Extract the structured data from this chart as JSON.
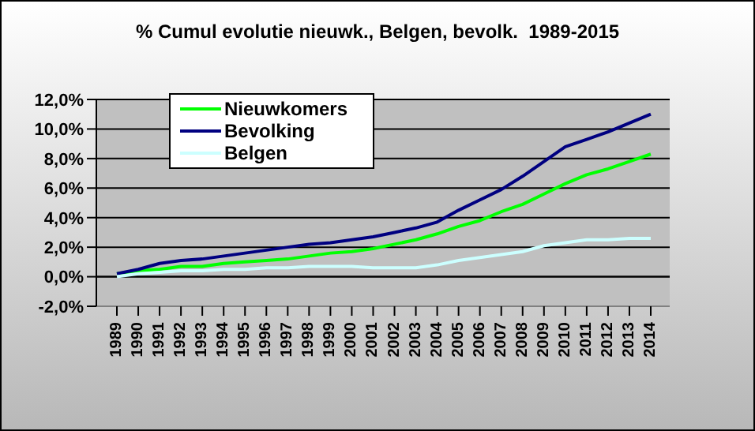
{
  "chart_data": {
    "type": "line",
    "title": "% Cumul evolutie nieuwk., Belgen, bevolk.  1989-2015",
    "categories": [
      "1989",
      "1990",
      "1991",
      "1992",
      "1993",
      "1994",
      "1995",
      "1996",
      "1997",
      "1998",
      "1999",
      "2000",
      "2001",
      "2002",
      "2003",
      "2004",
      "2005",
      "2006",
      "2007",
      "2008",
      "2009",
      "2010",
      "2011",
      "2012",
      "2013",
      "2014"
    ],
    "series": [
      {
        "name": "Nieuwkomers",
        "color": "#00ff00",
        "values": [
          0.2,
          0.4,
          0.5,
          0.7,
          0.7,
          0.9,
          1.0,
          1.1,
          1.2,
          1.4,
          1.6,
          1.7,
          1.9,
          2.2,
          2.5,
          2.9,
          3.4,
          3.8,
          4.4,
          4.9,
          5.6,
          6.3,
          6.9,
          7.3,
          7.8,
          8.3
        ]
      },
      {
        "name": "Bevolking",
        "color": "#000080",
        "values": [
          0.2,
          0.5,
          0.9,
          1.1,
          1.2,
          1.4,
          1.6,
          1.8,
          2.0,
          2.2,
          2.3,
          2.5,
          2.7,
          3.0,
          3.3,
          3.7,
          4.5,
          5.2,
          5.9,
          6.8,
          7.8,
          8.8,
          9.3,
          9.8,
          10.4,
          11.0
        ]
      },
      {
        "name": "Belgen",
        "color": "#ccffff",
        "values": [
          0.0,
          0.2,
          0.3,
          0.4,
          0.4,
          0.5,
          0.5,
          0.6,
          0.6,
          0.7,
          0.7,
          0.7,
          0.6,
          0.6,
          0.6,
          0.8,
          1.1,
          1.3,
          1.5,
          1.7,
          2.1,
          2.3,
          2.5,
          2.5,
          2.6,
          2.6
        ]
      }
    ],
    "ylim": [
      -2,
      12
    ],
    "yticks": [
      {
        "value": -2,
        "label": "-2,0%"
      },
      {
        "value": 0,
        "label": "0,0%"
      },
      {
        "value": 2,
        "label": "2,0%"
      },
      {
        "value": 4,
        "label": "4,0%"
      },
      {
        "value": 6,
        "label": "6,0%"
      },
      {
        "value": 8,
        "label": "8,0%"
      },
      {
        "value": 10,
        "label": "10,0%"
      },
      {
        "value": 12,
        "label": "12,0%"
      }
    ],
    "grid": "y",
    "legend": "top left",
    "marker": "none",
    "line_style": "solid"
  }
}
